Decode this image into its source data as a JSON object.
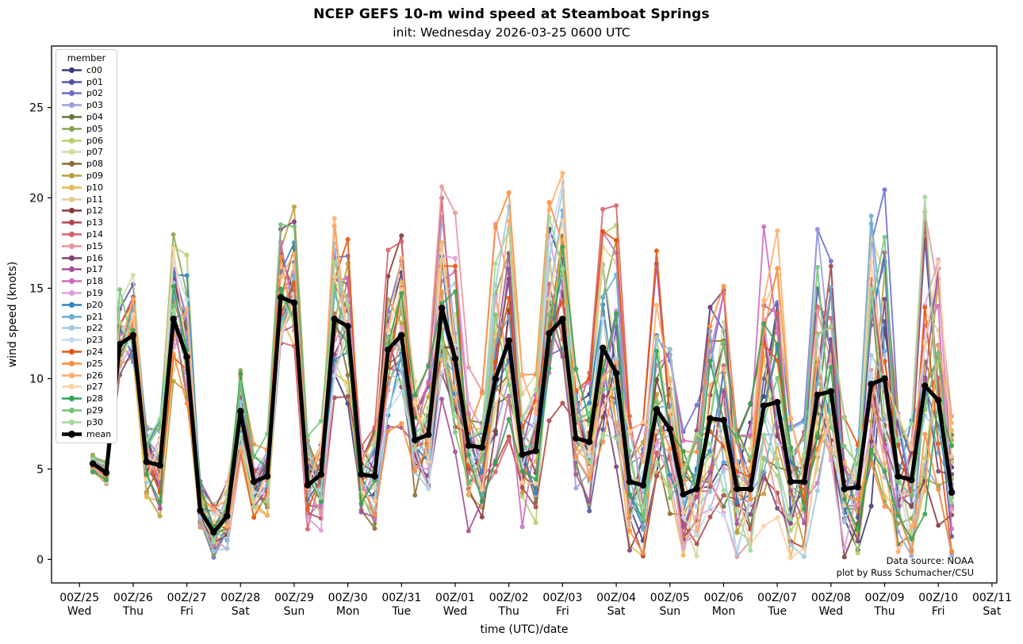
{
  "chart_data": {
    "type": "line",
    "title": "NCEP GEFS 10-m wind speed at Steamboat Springs",
    "subtitle": "init: Wednesday 2026-03-25 0600 UTC",
    "xlabel": "time (UTC)/date",
    "ylabel": "wind speed (knots)",
    "legend_title": "member",
    "legend_position": "upper left",
    "grid": false,
    "annotations": [
      "Data source: NOAA",
      "plot by Russ Schumacher/CSU"
    ],
    "y_ticks": [
      0,
      5,
      10,
      15,
      20,
      25
    ],
    "ylim": [
      -1.3,
      28.4
    ],
    "xlim_days": [
      -0.52,
      17.09
    ],
    "x_ticks": [
      {
        "date": "00Z/25",
        "day": "Wed"
      },
      {
        "date": "00Z/26",
        "day": "Thu"
      },
      {
        "date": "00Z/27",
        "day": "Fri"
      },
      {
        "date": "00Z/28",
        "day": "Sat"
      },
      {
        "date": "00Z/29",
        "day": "Sun"
      },
      {
        "date": "00Z/30",
        "day": "Mon"
      },
      {
        "date": "00Z/31",
        "day": "Tue"
      },
      {
        "date": "00Z/01",
        "day": "Wed"
      },
      {
        "date": "00Z/02",
        "day": "Thu"
      },
      {
        "date": "00Z/03",
        "day": "Fri"
      },
      {
        "date": "00Z/04",
        "day": "Sat"
      },
      {
        "date": "00Z/05",
        "day": "Sun"
      },
      {
        "date": "00Z/06",
        "day": "Mon"
      },
      {
        "date": "00Z/07",
        "day": "Tue"
      },
      {
        "date": "00Z/08",
        "day": "Wed"
      },
      {
        "date": "00Z/09",
        "day": "Thu"
      },
      {
        "date": "00Z/10",
        "day": "Fri"
      },
      {
        "date": "00Z/11",
        "day": "Sat"
      }
    ],
    "time_step_hours": 6,
    "first_point_day_offset": 0.25,
    "mean": {
      "name": "mean",
      "color": "#000000",
      "values": [
        5.3,
        4.8,
        11.9,
        12.4,
        5.4,
        5.2,
        13.3,
        11.2,
        2.7,
        1.5,
        2.4,
        8.2,
        4.3,
        4.6,
        14.5,
        14.2,
        4.1,
        4.7,
        13.3,
        12.9,
        4.7,
        4.6,
        11.6,
        12.4,
        6.6,
        6.9,
        13.9,
        11.1,
        6.3,
        6.2,
        10.0,
        12.1,
        5.8,
        6.0,
        12.5,
        13.3,
        6.7,
        6.5,
        11.7,
        10.3,
        4.3,
        4.1,
        8.3,
        7.2,
        3.6,
        3.9,
        7.8,
        7.7,
        3.9,
        3.9,
        8.5,
        8.7,
        4.3,
        4.3,
        9.1,
        9.3,
        3.9,
        4.0,
        9.7,
        10.0,
        4.6,
        4.4,
        9.6,
        8.8,
        3.7
      ]
    },
    "approx_member_spread": [
      0.5,
      0.5,
      1.6,
      1.8,
      1.6,
      2.2,
      2.2,
      2.6,
      1.6,
      1.2,
      1.6,
      2.2,
      1.8,
      1.8,
      2.4,
      2.6,
      2.0,
      2.2,
      3.0,
      3.0,
      2.2,
      2.4,
      3.2,
      3.2,
      2.6,
      2.8,
      3.4,
      3.4,
      2.8,
      2.8,
      3.6,
      3.6,
      2.8,
      3.0,
      3.8,
      3.8,
      3.0,
      3.2,
      4.2,
      4.2,
      3.0,
      3.0,
      4.0,
      4.0,
      2.8,
      3.0,
      4.2,
      4.2,
      3.0,
      3.2,
      4.6,
      4.6,
      3.2,
      3.4,
      4.6,
      4.8,
      3.2,
      3.4,
      5.2,
      5.2,
      3.4,
      3.6,
      5.0,
      5.0,
      3.4
    ],
    "members": [
      {
        "name": "c00",
        "color": "#393b79"
      },
      {
        "name": "p01",
        "color": "#5254a3"
      },
      {
        "name": "p02",
        "color": "#6b6ecf"
      },
      {
        "name": "p03",
        "color": "#9c9ede"
      },
      {
        "name": "p04",
        "color": "#637939"
      },
      {
        "name": "p05",
        "color": "#8ca252"
      },
      {
        "name": "p06",
        "color": "#b5cf6b"
      },
      {
        "name": "p07",
        "color": "#cedb9c"
      },
      {
        "name": "p08",
        "color": "#8c6d31"
      },
      {
        "name": "p09",
        "color": "#bd9e39"
      },
      {
        "name": "p10",
        "color": "#e7ba52"
      },
      {
        "name": "p11",
        "color": "#e7cb94"
      },
      {
        "name": "p12",
        "color": "#843c39"
      },
      {
        "name": "p13",
        "color": "#ad494a"
      },
      {
        "name": "p14",
        "color": "#d6616b"
      },
      {
        "name": "p15",
        "color": "#e7969c"
      },
      {
        "name": "p16",
        "color": "#7b4173"
      },
      {
        "name": "p17",
        "color": "#a55194"
      },
      {
        "name": "p18",
        "color": "#ce6dbd"
      },
      {
        "name": "p19",
        "color": "#de9ed6"
      },
      {
        "name": "p20",
        "color": "#3182bd"
      },
      {
        "name": "p21",
        "color": "#6baed6"
      },
      {
        "name": "p22",
        "color": "#9ecae1"
      },
      {
        "name": "p23",
        "color": "#c6dbef"
      },
      {
        "name": "p24",
        "color": "#e6550d"
      },
      {
        "name": "p25",
        "color": "#fd8d3c"
      },
      {
        "name": "p26",
        "color": "#fdae6b"
      },
      {
        "name": "p27",
        "color": "#fdd0a2"
      },
      {
        "name": "p28",
        "color": "#31a354"
      },
      {
        "name": "p29",
        "color": "#74c476"
      },
      {
        "name": "p30",
        "color": "#a1d99b"
      }
    ]
  }
}
